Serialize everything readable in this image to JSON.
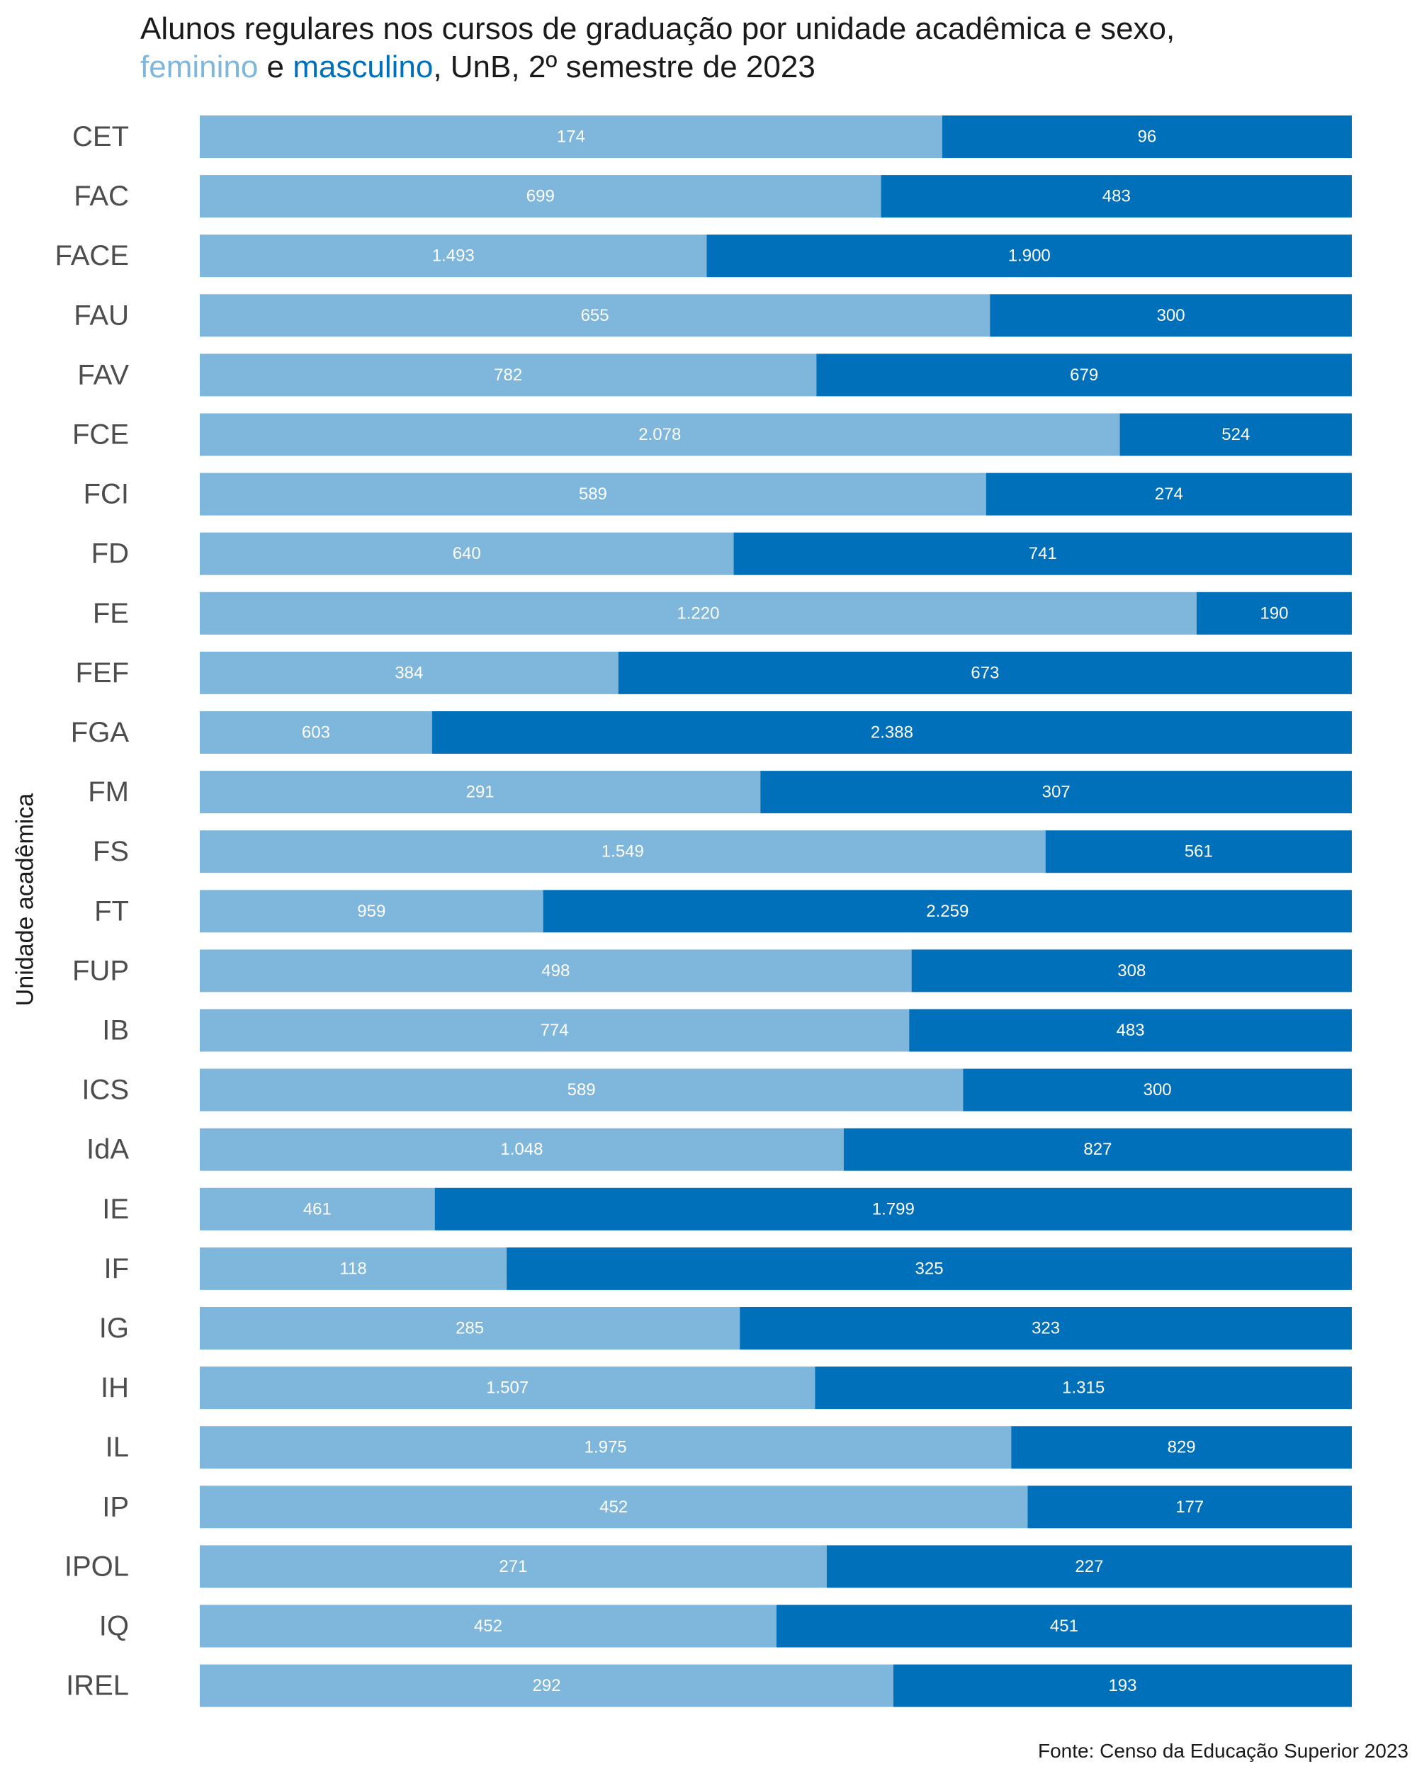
{
  "title": {
    "line1": "Alunos regulares nos cursos de graduação por unidade acadêmica e sexo,",
    "fem_word": "feminino",
    "connector": " e ",
    "masc_word": "masculino",
    "line2_rest": ", UnB, 2º semestre de 2023"
  },
  "source": "Fonte: Censo da Educação Superior 2023",
  "colors": {
    "feminino": "#7fb6dc",
    "masculino": "#0070bb"
  },
  "chart_data": {
    "type": "bar",
    "orientation": "horizontal",
    "stacked": "percent",
    "ylabel": "Unidade acadêmica",
    "categories": [
      "CET",
      "FAC",
      "FACE",
      "FAU",
      "FAV",
      "FCE",
      "FCI",
      "FD",
      "FE",
      "FEF",
      "FGA",
      "FM",
      "FS",
      "FT",
      "FUP",
      "IB",
      "ICS",
      "IdA",
      "IE",
      "IF",
      "IG",
      "IH",
      "IL",
      "IP",
      "IPOL",
      "IQ",
      "IREL"
    ],
    "series": [
      {
        "name": "feminino",
        "values": [
          174,
          699,
          1493,
          655,
          782,
          2078,
          589,
          640,
          1220,
          384,
          603,
          291,
          1549,
          959,
          498,
          774,
          589,
          1048,
          461,
          118,
          285,
          1507,
          1975,
          452,
          271,
          452,
          292
        ],
        "labels": [
          "174",
          "699",
          "1.493",
          "655",
          "782",
          "2.078",
          "589",
          "640",
          "1.220",
          "384",
          "603",
          "291",
          "1.549",
          "959",
          "498",
          "774",
          "589",
          "1.048",
          "461",
          "118",
          "285",
          "1.507",
          "1.975",
          "452",
          "271",
          "452",
          "292"
        ]
      },
      {
        "name": "masculino",
        "values": [
          96,
          483,
          1900,
          300,
          679,
          524,
          274,
          741,
          190,
          673,
          2388,
          307,
          561,
          2259,
          308,
          483,
          300,
          827,
          1799,
          325,
          323,
          1315,
          829,
          177,
          227,
          451,
          193
        ],
        "labels": [
          "96",
          "483",
          "1.900",
          "300",
          "679",
          "524",
          "274",
          "741",
          "190",
          "673",
          "2.388",
          "307",
          "561",
          "2.259",
          "308",
          "483",
          "300",
          "827",
          "1.799",
          "325",
          "323",
          "1.315",
          "829",
          "177",
          "227",
          "451",
          "193"
        ]
      }
    ],
    "grid": false,
    "legend": "in-title"
  }
}
